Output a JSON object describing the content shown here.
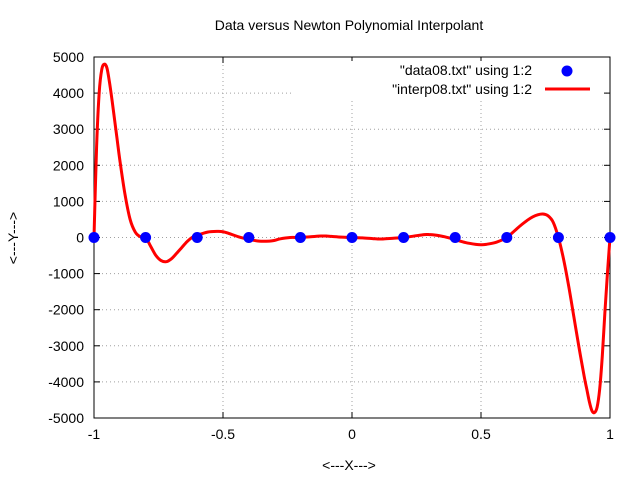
{
  "chart_data": {
    "type": "scatter",
    "title": "Data versus Newton Polynomial Interpolant",
    "xlabel": "<---X--->",
    "ylabel": "<---Y--->",
    "xlim": [
      -1,
      1
    ],
    "ylim": [
      -5000,
      5000
    ],
    "grid": true,
    "legend_position": "top-right",
    "x_ticks": [
      "-1",
      "-0.5",
      "0",
      "0.5",
      "1"
    ],
    "y_ticks": [
      "-5000",
      "-4000",
      "-3000",
      "-2000",
      "-1000",
      "0",
      "1000",
      "2000",
      "3000",
      "4000",
      "5000"
    ],
    "series": [
      {
        "name": "\"data08.txt\" using 1:2",
        "style": "points",
        "color": "#0000ff",
        "x": [
          -1.0,
          -0.8,
          -0.6,
          -0.4,
          -0.2,
          0.0,
          0.2,
          0.4,
          0.6,
          0.8,
          1.0
        ],
        "y": [
          0,
          0,
          0,
          0,
          0,
          0,
          0,
          0,
          0,
          0,
          0
        ]
      },
      {
        "name": "\"interp08.txt\" using 1:2",
        "style": "line",
        "color": "#ff0000",
        "x": [
          -1.0,
          -0.99,
          -0.98,
          -0.97,
          -0.96,
          -0.95,
          -0.94,
          -0.93,
          -0.92,
          -0.91,
          -0.9,
          -0.88,
          -0.86,
          -0.84,
          -0.82,
          -0.8,
          -0.78,
          -0.76,
          -0.74,
          -0.72,
          -0.7,
          -0.68,
          -0.66,
          -0.64,
          -0.62,
          -0.6,
          -0.56,
          -0.52,
          -0.5,
          -0.48,
          -0.44,
          -0.4,
          -0.36,
          -0.32,
          -0.3,
          -0.28,
          -0.24,
          -0.2,
          -0.16,
          -0.12,
          -0.1,
          -0.08,
          -0.04,
          0.0,
          0.04,
          0.08,
          0.1,
          0.12,
          0.16,
          0.2,
          0.24,
          0.28,
          0.3,
          0.32,
          0.36,
          0.4,
          0.44,
          0.48,
          0.5,
          0.52,
          0.56,
          0.6,
          0.62,
          0.64,
          0.66,
          0.68,
          0.7,
          0.72,
          0.74,
          0.76,
          0.78,
          0.8,
          0.82,
          0.84,
          0.86,
          0.88,
          0.9,
          0.91,
          0.92,
          0.93,
          0.94,
          0.95,
          0.96,
          0.97,
          0.98,
          0.99,
          1.0
        ],
        "y": [
          0,
          2500,
          4000,
          4650,
          4800,
          4700,
          4300,
          3800,
          3250,
          2700,
          2150,
          1200,
          500,
          150,
          20,
          0,
          -250,
          -500,
          -640,
          -670,
          -590,
          -440,
          -280,
          -120,
          0,
          60,
          150,
          170,
          160,
          120,
          20,
          -50,
          -100,
          -100,
          -80,
          -40,
          0,
          0,
          20,
          40,
          40,
          30,
          10,
          0,
          -10,
          -30,
          -40,
          -40,
          -20,
          0,
          40,
          80,
          80,
          70,
          20,
          -60,
          -140,
          -190,
          -200,
          -190,
          -130,
          0,
          120,
          250,
          370,
          480,
          570,
          630,
          650,
          600,
          420,
          0,
          -600,
          -1350,
          -2200,
          -3050,
          -3850,
          -4200,
          -4550,
          -4800,
          -4850,
          -4700,
          -4200,
          -3300,
          -2100,
          -1000,
          0
        ]
      }
    ]
  }
}
